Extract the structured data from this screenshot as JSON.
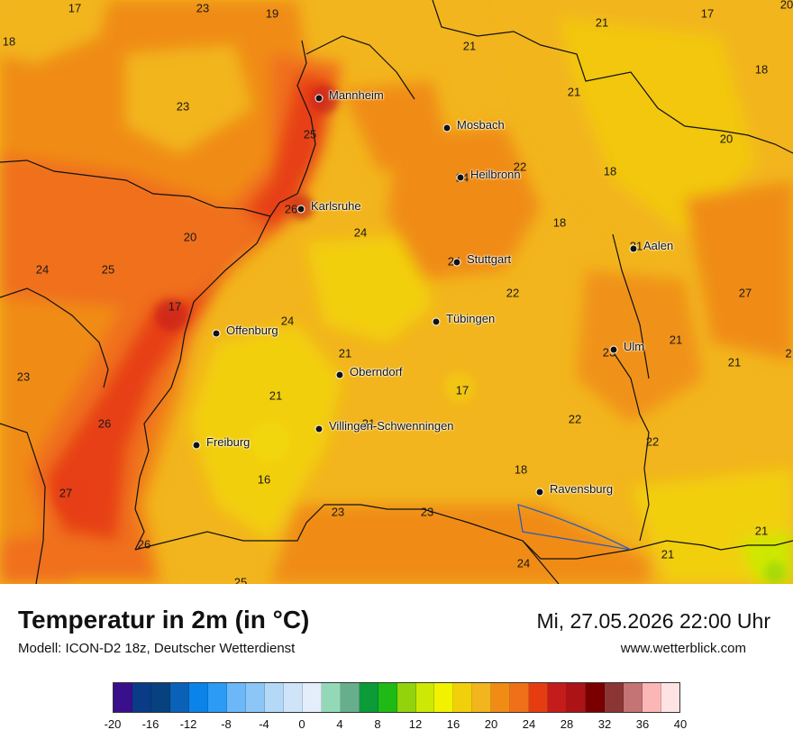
{
  "map": {
    "cities": [
      {
        "name": "Mannheim"
      },
      {
        "name": "Mosbach"
      },
      {
        "name": "Heilbronn"
      },
      {
        "name": "Karlsruhe"
      },
      {
        "name": "Stuttgart"
      },
      {
        "name": "Aalen"
      },
      {
        "name": "Tübingen"
      },
      {
        "name": "Offenburg"
      },
      {
        "name": "Ulm"
      },
      {
        "name": "Oberndorf"
      },
      {
        "name": "Villingen-Schwenningen"
      },
      {
        "name": "Freiburg"
      },
      {
        "name": "Ravensburg"
      }
    ],
    "temperatures": [
      {
        "value": "17"
      },
      {
        "value": "23"
      },
      {
        "value": "19"
      },
      {
        "value": "21"
      },
      {
        "value": "17"
      },
      {
        "value": "20"
      },
      {
        "value": "18"
      },
      {
        "value": "21"
      },
      {
        "value": "18"
      },
      {
        "value": "23"
      },
      {
        "value": "21"
      },
      {
        "value": "25"
      },
      {
        "value": "20"
      },
      {
        "value": "22"
      },
      {
        "value": "18"
      },
      {
        "value": "24"
      },
      {
        "value": "26"
      },
      {
        "value": "18"
      },
      {
        "value": "20"
      },
      {
        "value": "24"
      },
      {
        "value": "24"
      },
      {
        "value": "25"
      },
      {
        "value": "21"
      },
      {
        "value": "24"
      },
      {
        "value": "22"
      },
      {
        "value": "27"
      },
      {
        "value": "17"
      },
      {
        "value": "24"
      },
      {
        "value": "23"
      },
      {
        "value": "21"
      },
      {
        "value": "21"
      },
      {
        "value": "23"
      },
      {
        "value": "2"
      },
      {
        "value": "21"
      },
      {
        "value": "21"
      },
      {
        "value": "17"
      },
      {
        "value": "26"
      },
      {
        "value": "21"
      },
      {
        "value": "22"
      },
      {
        "value": "22"
      },
      {
        "value": "18"
      },
      {
        "value": "16"
      },
      {
        "value": "27"
      },
      {
        "value": "23"
      },
      {
        "value": "23"
      },
      {
        "value": "21"
      },
      {
        "value": "26"
      },
      {
        "value": "24"
      },
      {
        "value": "21"
      },
      {
        "value": "25"
      }
    ]
  },
  "footer": {
    "title": "Temperatur in 2m (in °C)",
    "model": "Modell: ICON-D2 18z, Deutscher Wetterdienst",
    "datetime": "Mi, 27.05.2026 22:00 Uhr",
    "website": "www.wetterblick.com"
  },
  "legend": {
    "colors": [
      "#3a0f8c",
      "#0a3b87",
      "#07417f",
      "#0a62b8",
      "#0a84e8",
      "#2b9bf5",
      "#6cb7f7",
      "#8cc6f7",
      "#b4d9f7",
      "#cfe4f9",
      "#e3eefa",
      "#94d9b7",
      "#66ae8c",
      "#0b9b37",
      "#20ba16",
      "#92d30b",
      "#cde805",
      "#f2f200",
      "#f2cf0b",
      "#f2b51d",
      "#f08c14",
      "#f0701a",
      "#e63c12",
      "#c41b1b",
      "#ab1317",
      "#7a0000",
      "#8c3535",
      "#c47474",
      "#fbb6b6",
      "#fde3e3"
    ],
    "tick_labels": [
      "-20",
      "-16",
      "-12",
      "-8",
      "-4",
      "0",
      "4",
      "8",
      "12",
      "16",
      "20",
      "24",
      "28",
      "32",
      "36",
      "40"
    ]
  }
}
